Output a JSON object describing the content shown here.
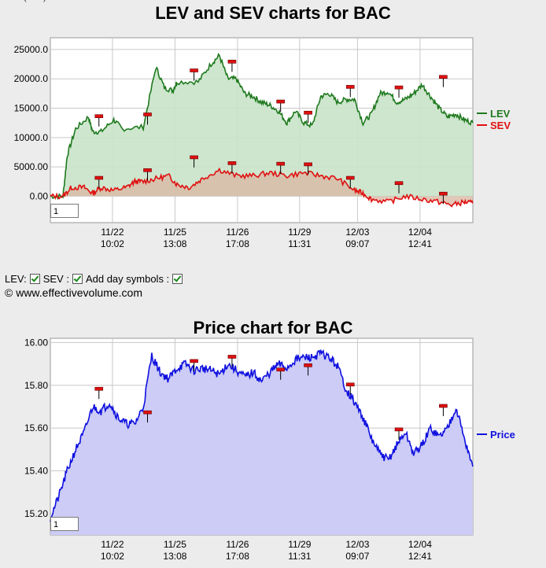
{
  "chart_data": [
    {
      "type": "line",
      "title": "LEV and SEV charts for BAC",
      "categories": [
        "11/22 10:02",
        "11/25 13:08",
        "11/26 17:08",
        "11/29 11:31",
        "12/03 09:07",
        "12/04 12:41"
      ],
      "x_tick_dates": [
        "11/22",
        "11/25",
        "11/26",
        "11/29",
        "12/03",
        "12/04"
      ],
      "x_tick_times": [
        "10:02",
        "13:08",
        "17:08",
        "11:31",
        "09:07",
        "12:41"
      ],
      "y_ticks": [
        "25000.0",
        "20000.0",
        "15000.0",
        "10000.0",
        "5000.00",
        "0.00"
      ],
      "ylim": [
        -4500,
        27000
      ],
      "y_tick_values": [
        25000,
        20000,
        15000,
        10000,
        5000,
        0
      ],
      "grid": true,
      "legend_position": "right",
      "series": [
        {
          "name": "LEV",
          "color": "#1f7a1f",
          "x": [
            0,
            0.03,
            0.04,
            0.06,
            0.09,
            0.1,
            0.12,
            0.15,
            0.17,
            0.22,
            0.25,
            0.27,
            0.29,
            0.3,
            0.35,
            0.38,
            0.4,
            0.42,
            0.44,
            0.46,
            0.48,
            0.5,
            0.52,
            0.54,
            0.56,
            0.58,
            0.6,
            0.62,
            0.64,
            0.66,
            0.68,
            0.7,
            0.72,
            0.74,
            0.76,
            0.78,
            0.8,
            0.82,
            0.84,
            0.86,
            0.88,
            0.9,
            0.92,
            0.94,
            0.96,
            0.98,
            1.0
          ],
          "values": [
            0,
            0,
            7000,
            11500,
            13500,
            11000,
            11000,
            13000,
            11500,
            11800,
            22000,
            18500,
            18000,
            19500,
            19500,
            22500,
            24000,
            20000,
            20000,
            17500,
            17000,
            16000,
            15500,
            14500,
            12500,
            14500,
            12500,
            12000,
            17000,
            17500,
            16000,
            16500,
            16500,
            12500,
            14000,
            17500,
            17800,
            16000,
            16500,
            17500,
            19000,
            17000,
            15000,
            13500,
            14000,
            13000,
            12500
          ]
        },
        {
          "name": "SEV",
          "color": "#e01010",
          "x": [
            0,
            0.03,
            0.05,
            0.08,
            0.1,
            0.12,
            0.15,
            0.18,
            0.2,
            0.22,
            0.25,
            0.28,
            0.3,
            0.33,
            0.36,
            0.4,
            0.44,
            0.48,
            0.52,
            0.56,
            0.6,
            0.64,
            0.68,
            0.72,
            0.74,
            0.76,
            0.8,
            0.84,
            0.88,
            0.92,
            0.95,
            0.98,
            1.0
          ],
          "values": [
            0,
            0,
            1500,
            1500,
            500,
            1500,
            1000,
            1500,
            2500,
            2500,
            3000,
            3500,
            2000,
            1500,
            3000,
            4500,
            3500,
            3500,
            4000,
            3500,
            4000,
            3500,
            3000,
            1000,
            500,
            -500,
            -1000,
            0,
            -500,
            -1000,
            -1500,
            -1000,
            -1200
          ]
        }
      ]
    },
    {
      "type": "area",
      "title": "Price chart for BAC",
      "categories": [
        "11/22 10:02",
        "11/25 13:08",
        "11/26 17:08",
        "11/29 11:31",
        "12/03 09:07",
        "12/04 12:41"
      ],
      "x_tick_dates": [
        "11/22",
        "11/25",
        "11/26",
        "11/29",
        "12/03",
        "12/04"
      ],
      "x_tick_times": [
        "10:02",
        "13:08",
        "17:08",
        "11:31",
        "09:07",
        "12:41"
      ],
      "y_ticks": [
        "16.00",
        "15.80",
        "15.60",
        "15.40",
        "15.20"
      ],
      "y_tick_values": [
        16.0,
        15.8,
        15.6,
        15.4,
        15.2
      ],
      "ylim": [
        15.1,
        16.02
      ],
      "grid": true,
      "legend_position": "right",
      "series": [
        {
          "name": "Price",
          "color": "#1010e0",
          "x": [
            0,
            0.02,
            0.04,
            0.06,
            0.08,
            0.1,
            0.12,
            0.14,
            0.16,
            0.18,
            0.2,
            0.22,
            0.24,
            0.26,
            0.28,
            0.3,
            0.32,
            0.34,
            0.36,
            0.38,
            0.4,
            0.42,
            0.44,
            0.46,
            0.48,
            0.5,
            0.52,
            0.54,
            0.56,
            0.58,
            0.6,
            0.62,
            0.64,
            0.66,
            0.68,
            0.7,
            0.72,
            0.74,
            0.76,
            0.78,
            0.8,
            0.82,
            0.84,
            0.86,
            0.88,
            0.9,
            0.92,
            0.94,
            0.96,
            0.98,
            1.0
          ],
          "values": [
            15.18,
            15.28,
            15.4,
            15.5,
            15.58,
            15.7,
            15.68,
            15.72,
            15.65,
            15.62,
            15.62,
            15.7,
            15.94,
            15.86,
            15.83,
            15.88,
            15.9,
            15.87,
            15.88,
            15.87,
            15.85,
            15.9,
            15.87,
            15.84,
            15.86,
            15.82,
            15.86,
            15.9,
            15.88,
            15.92,
            15.93,
            15.93,
            15.95,
            15.93,
            15.89,
            15.78,
            15.72,
            15.65,
            15.55,
            15.48,
            15.45,
            15.52,
            15.58,
            15.48,
            15.52,
            15.6,
            15.56,
            15.6,
            15.7,
            15.55,
            15.42
          ]
        }
      ]
    }
  ],
  "markers_chart1": {
    "lev_x": [
      0.115,
      0.23,
      0.34,
      0.43,
      0.545,
      0.61,
      0.71,
      0.825,
      0.93
    ],
    "lev_y": [
      13500,
      13800,
      21300,
      22800,
      16000,
      14100,
      18500,
      18400,
      20200
    ],
    "sev_x": [
      0.115,
      0.23,
      0.34,
      0.43,
      0.545,
      0.61,
      0.71,
      0.825,
      0.93
    ],
    "sev_y": [
      3000,
      4300,
      6500,
      5500,
      5400,
      5300,
      3000,
      2100,
      300
    ]
  },
  "markers_chart2": {
    "x": [
      0.115,
      0.23,
      0.34,
      0.43,
      0.545,
      0.61,
      0.71,
      0.825,
      0.93
    ],
    "y": [
      15.78,
      15.67,
      15.91,
      15.93,
      15.87,
      15.89,
      15.8,
      15.59,
      15.7
    ]
  },
  "chart1_input": "1",
  "chart2_input": "1",
  "controls": {
    "lev_label": "LEV:",
    "sev_label": "SEV :",
    "day_symbols_label": "Add day symbols :"
  },
  "copyright": "© www.effectivevolume.com",
  "top_fragment": "(... ...)"
}
